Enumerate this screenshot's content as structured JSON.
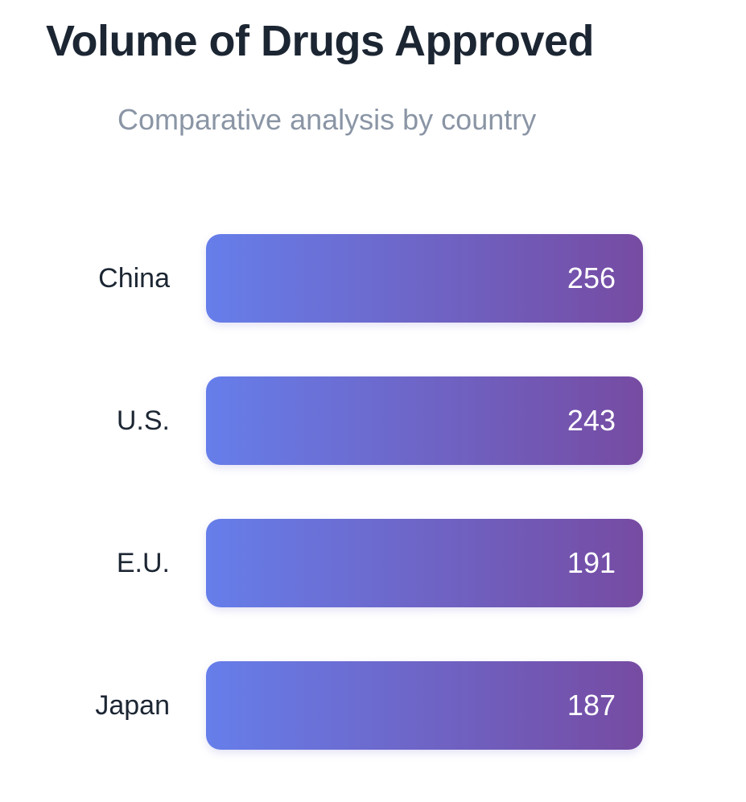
{
  "header": {
    "title": "Volume of Drugs Approved",
    "subtitle": "Comparative analysis by country"
  },
  "colors": {
    "bar_gradient_start": "#667eea",
    "bar_gradient_end": "#764ba2",
    "title": "#1c2633",
    "subtitle": "#8a95a5",
    "value_text": "#ffffff"
  },
  "chart_data": {
    "type": "bar",
    "orientation": "horizontal",
    "title": "Volume of Drugs Approved",
    "subtitle": "Comparative analysis by country",
    "xlabel": "",
    "ylabel": "",
    "categories": [
      "China",
      "U.S.",
      "E.U.",
      "Japan"
    ],
    "values": [
      256,
      243,
      191,
      187
    ],
    "grid": false,
    "legend": "none"
  }
}
